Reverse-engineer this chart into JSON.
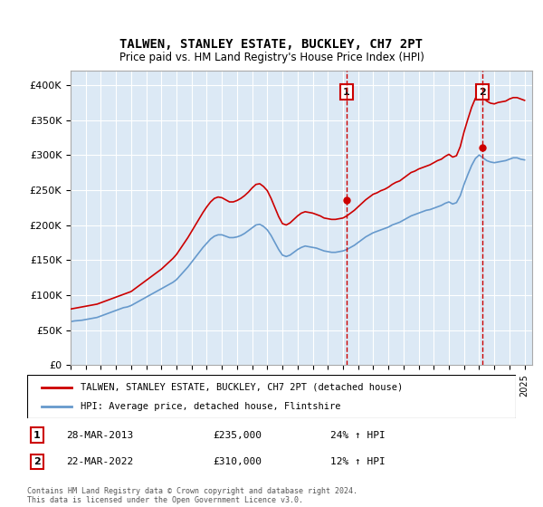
{
  "title": "TALWEN, STANLEY ESTATE, BUCKLEY, CH7 2PT",
  "subtitle": "Price paid vs. HM Land Registry's House Price Index (HPI)",
  "ylabel_ticks": [
    "£0",
    "£50K",
    "£100K",
    "£150K",
    "£200K",
    "£250K",
    "£300K",
    "£350K",
    "£400K"
  ],
  "ytick_values": [
    0,
    50000,
    100000,
    150000,
    200000,
    250000,
    300000,
    350000,
    400000
  ],
  "ylim": [
    0,
    420000
  ],
  "xlim_start": 1995.0,
  "xlim_end": 2025.5,
  "red_color": "#cc0000",
  "blue_color": "#6699cc",
  "background_color": "#dce9f5",
  "marker1_x": 2013.24,
  "marker1_y": 235000,
  "marker1_label": "1",
  "marker1_date": "28-MAR-2013",
  "marker1_price": "£235,000",
  "marker1_hpi": "24% ↑ HPI",
  "marker2_x": 2022.22,
  "marker2_y": 310000,
  "marker2_label": "2",
  "marker2_date": "22-MAR-2022",
  "marker2_price": "£310,000",
  "marker2_hpi": "12% ↑ HPI",
  "legend_red_label": "TALWEN, STANLEY ESTATE, BUCKLEY, CH7 2PT (detached house)",
  "legend_blue_label": "HPI: Average price, detached house, Flintshire",
  "footnote": "Contains HM Land Registry data © Crown copyright and database right 2024.\nThis data is licensed under the Open Government Licence v3.0.",
  "xtick_years": [
    1995,
    1996,
    1997,
    1998,
    1999,
    2000,
    2001,
    2002,
    2003,
    2004,
    2005,
    2006,
    2007,
    2008,
    2009,
    2010,
    2011,
    2012,
    2013,
    2014,
    2015,
    2016,
    2017,
    2018,
    2019,
    2020,
    2021,
    2022,
    2023,
    2024,
    2025
  ],
  "hpi_data": {
    "years": [
      1995.0,
      1995.25,
      1995.5,
      1995.75,
      1996.0,
      1996.25,
      1996.5,
      1996.75,
      1997.0,
      1997.25,
      1997.5,
      1997.75,
      1998.0,
      1998.25,
      1998.5,
      1998.75,
      1999.0,
      1999.25,
      1999.5,
      1999.75,
      2000.0,
      2000.25,
      2000.5,
      2000.75,
      2001.0,
      2001.25,
      2001.5,
      2001.75,
      2002.0,
      2002.25,
      2002.5,
      2002.75,
      2003.0,
      2003.25,
      2003.5,
      2003.75,
      2004.0,
      2004.25,
      2004.5,
      2004.75,
      2005.0,
      2005.25,
      2005.5,
      2005.75,
      2006.0,
      2006.25,
      2006.5,
      2006.75,
      2007.0,
      2007.25,
      2007.5,
      2007.75,
      2008.0,
      2008.25,
      2008.5,
      2008.75,
      2009.0,
      2009.25,
      2009.5,
      2009.75,
      2010.0,
      2010.25,
      2010.5,
      2010.75,
      2011.0,
      2011.25,
      2011.5,
      2011.75,
      2012.0,
      2012.25,
      2012.5,
      2012.75,
      2013.0,
      2013.25,
      2013.5,
      2013.75,
      2014.0,
      2014.25,
      2014.5,
      2014.75,
      2015.0,
      2015.25,
      2015.5,
      2015.75,
      2016.0,
      2016.25,
      2016.5,
      2016.75,
      2017.0,
      2017.25,
      2017.5,
      2017.75,
      2018.0,
      2018.25,
      2018.5,
      2018.75,
      2019.0,
      2019.25,
      2019.5,
      2019.75,
      2020.0,
      2020.25,
      2020.5,
      2020.75,
      2021.0,
      2021.25,
      2021.5,
      2021.75,
      2022.0,
      2022.25,
      2022.5,
      2022.75,
      2023.0,
      2023.25,
      2023.5,
      2023.75,
      2024.0,
      2024.25,
      2024.5,
      2024.75,
      2025.0
    ],
    "values": [
      62000,
      63000,
      63500,
      64000,
      65000,
      66000,
      67000,
      68000,
      70000,
      72000,
      74000,
      76000,
      78000,
      80000,
      82000,
      83000,
      85000,
      88000,
      91000,
      94000,
      97000,
      100000,
      103000,
      106000,
      109000,
      112000,
      115000,
      118000,
      122000,
      128000,
      134000,
      140000,
      147000,
      154000,
      161000,
      168000,
      174000,
      180000,
      184000,
      186000,
      186000,
      184000,
      182000,
      182000,
      183000,
      185000,
      188000,
      192000,
      196000,
      200000,
      201000,
      198000,
      193000,
      185000,
      175000,
      165000,
      157000,
      155000,
      157000,
      161000,
      165000,
      168000,
      170000,
      169000,
      168000,
      167000,
      165000,
      163000,
      162000,
      161000,
      161000,
      162000,
      163000,
      165000,
      168000,
      171000,
      175000,
      179000,
      183000,
      186000,
      189000,
      191000,
      193000,
      195000,
      197000,
      200000,
      202000,
      204000,
      207000,
      210000,
      213000,
      215000,
      217000,
      219000,
      221000,
      222000,
      224000,
      226000,
      228000,
      231000,
      233000,
      230000,
      232000,
      242000,
      258000,
      272000,
      285000,
      295000,
      300000,
      296000,
      292000,
      290000,
      289000,
      290000,
      291000,
      292000,
      294000,
      296000,
      296000,
      294000,
      293000
    ]
  },
  "red_data": {
    "years": [
      1995.0,
      1995.25,
      1995.5,
      1995.75,
      1996.0,
      1996.25,
      1996.5,
      1996.75,
      1997.0,
      1997.25,
      1997.5,
      1997.75,
      1998.0,
      1998.25,
      1998.5,
      1998.75,
      1999.0,
      1999.25,
      1999.5,
      1999.75,
      2000.0,
      2000.25,
      2000.5,
      2000.75,
      2001.0,
      2001.25,
      2001.5,
      2001.75,
      2002.0,
      2002.25,
      2002.5,
      2002.75,
      2003.0,
      2003.25,
      2003.5,
      2003.75,
      2004.0,
      2004.25,
      2004.5,
      2004.75,
      2005.0,
      2005.25,
      2005.5,
      2005.75,
      2006.0,
      2006.25,
      2006.5,
      2006.75,
      2007.0,
      2007.25,
      2007.5,
      2007.75,
      2008.0,
      2008.25,
      2008.5,
      2008.75,
      2009.0,
      2009.25,
      2009.5,
      2009.75,
      2010.0,
      2010.25,
      2010.5,
      2010.75,
      2011.0,
      2011.25,
      2011.5,
      2011.75,
      2012.0,
      2012.25,
      2012.5,
      2012.75,
      2013.0,
      2013.25,
      2013.5,
      2013.75,
      2014.0,
      2014.25,
      2014.5,
      2014.75,
      2015.0,
      2015.25,
      2015.5,
      2015.75,
      2016.0,
      2016.25,
      2016.5,
      2016.75,
      2017.0,
      2017.25,
      2017.5,
      2017.75,
      2018.0,
      2018.25,
      2018.5,
      2018.75,
      2019.0,
      2019.25,
      2019.5,
      2019.75,
      2020.0,
      2020.25,
      2020.5,
      2020.75,
      2021.0,
      2021.25,
      2021.5,
      2021.75,
      2022.0,
      2022.25,
      2022.5,
      2022.75,
      2023.0,
      2023.25,
      2023.5,
      2023.75,
      2024.0,
      2024.25,
      2024.5,
      2024.75,
      2025.0
    ],
    "values": [
      80000,
      81000,
      82000,
      83000,
      84000,
      85000,
      86000,
      87000,
      89000,
      91000,
      93000,
      95000,
      97000,
      99000,
      101000,
      103000,
      105000,
      109000,
      113000,
      117000,
      121000,
      125000,
      129000,
      133000,
      137000,
      142000,
      147000,
      152000,
      158000,
      166000,
      174000,
      182000,
      191000,
      200000,
      209000,
      218000,
      226000,
      233000,
      238000,
      240000,
      239000,
      236000,
      233000,
      233000,
      235000,
      238000,
      242000,
      247000,
      253000,
      258000,
      259000,
      255000,
      249000,
      238000,
      225000,
      212000,
      202000,
      200000,
      203000,
      208000,
      213000,
      217000,
      219000,
      218000,
      217000,
      215000,
      213000,
      210000,
      209000,
      208000,
      208000,
      209000,
      210000,
      213000,
      217000,
      221000,
      226000,
      231000,
      236000,
      240000,
      244000,
      246000,
      249000,
      251000,
      254000,
      258000,
      261000,
      263000,
      267000,
      271000,
      275000,
      277000,
      280000,
      282000,
      284000,
      286000,
      289000,
      292000,
      294000,
      298000,
      301000,
      297000,
      299000,
      312000,
      333000,
      351000,
      368000,
      381000,
      387000,
      382000,
      377000,
      374000,
      373000,
      375000,
      376000,
      377000,
      380000,
      382000,
      382000,
      380000,
      378000
    ]
  }
}
